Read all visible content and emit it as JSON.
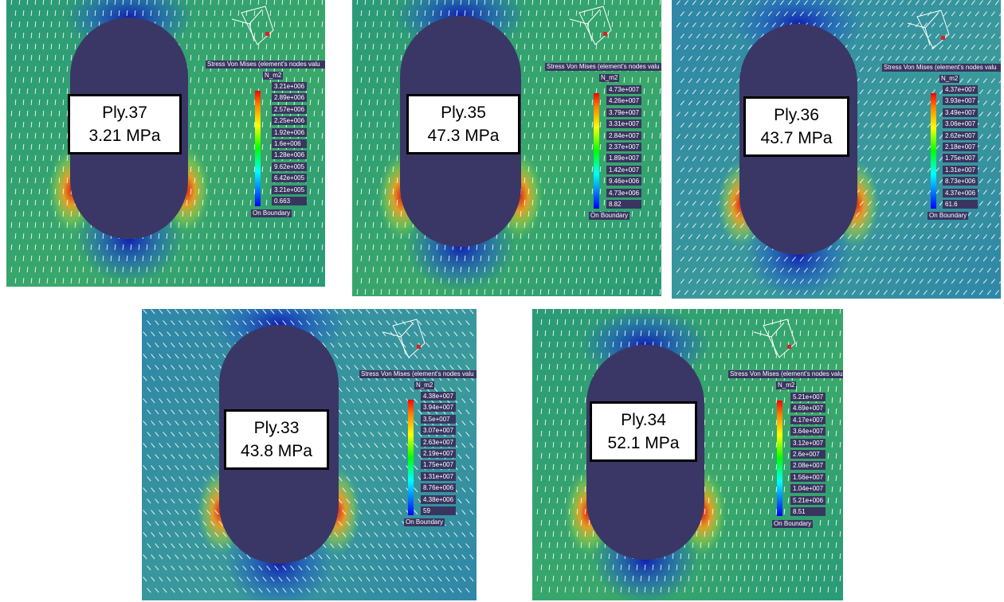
{
  "legend_common": {
    "title": "Stress Von Mises (element's nodes valu",
    "unit": "N_m2",
    "footer": "On Boundary"
  },
  "colors": {
    "hole": "#3a3766",
    "arrow": "#ffffff",
    "legend_bg": "#3a3560"
  },
  "panels": [
    {
      "ply": "Ply.37",
      "stress": "3.21 MPa",
      "legend_values": [
        "3.21e+006",
        "2.89e+006",
        "2.57e+006",
        "2.25e+006",
        "1.92e+006",
        "1.6e+006",
        "1.28e+006",
        "9.62e+005",
        "6.42e+005",
        "3.21e+005",
        "0.663"
      ],
      "arrow_angle_deg": 5,
      "field": "green"
    },
    {
      "ply": "Ply.35",
      "stress": "47.3 MPa",
      "legend_values": [
        "4.73e+007",
        "4.26e+007",
        "3.79e+007",
        "3.31e+007",
        "2.84e+007",
        "2.37e+007",
        "1.89e+007",
        "1.42e+007",
        "9.46e+006",
        "4.73e+006",
        "8.82"
      ],
      "arrow_angle_deg": 5,
      "field": "green"
    },
    {
      "ply": "Ply.36",
      "stress": "43.7 MPa",
      "legend_values": [
        "4.37e+007",
        "3.93e+007",
        "3.49e+007",
        "3.06e+007",
        "2.62e+007",
        "2.18e+007",
        "1.75e+007",
        "1.31e+007",
        "8.73e+006",
        "4.37e+006",
        "61.6"
      ],
      "arrow_angle_deg": 40,
      "field": "blue"
    },
    {
      "ply": "Ply.33",
      "stress": "43.8 MPa",
      "legend_values": [
        "4.38e+007",
        "3.94e+007",
        "3.5e+007",
        "3.07e+007",
        "2.63e+007",
        "2.19e+007",
        "1.75e+007",
        "1.31e+007",
        "8.76e+006",
        "4.38e+006",
        "59"
      ],
      "arrow_angle_deg": -40,
      "field": "blue"
    },
    {
      "ply": "Ply.34",
      "stress": "52.1 MPa",
      "legend_values": [
        "5.21e+007",
        "4.69e+007",
        "4.17e+007",
        "3.64e+007",
        "3.12e+007",
        "2.6e+007",
        "2.08e+007",
        "1.56e+007",
        "1.04e+007",
        "5.21e+006",
        "8.51"
      ],
      "arrow_angle_deg": 5,
      "field": "green"
    }
  ]
}
